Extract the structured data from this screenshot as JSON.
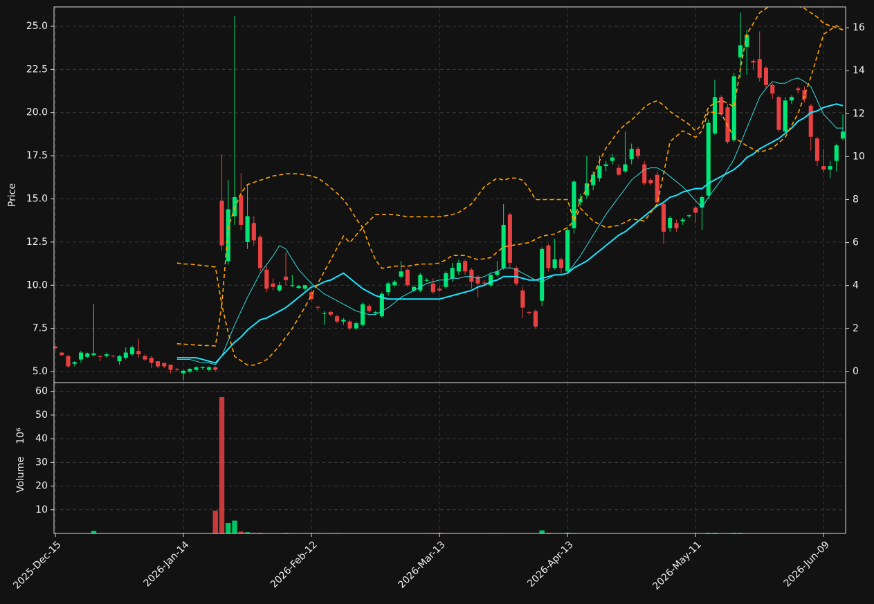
{
  "chart_data": {
    "type": "candlestick",
    "ylabel": "Price",
    "volume_ylabel": "Volume",
    "volume_unit": "10⁶",
    "grid": true,
    "up_color": "#00e676",
    "down_color": "#e84142",
    "categories": [
      "2025-Dec-15",
      null,
      null,
      null,
      null,
      null,
      null,
      null,
      null,
      null,
      null,
      null,
      null,
      null,
      null,
      null,
      null,
      null,
      null,
      null,
      "2026-Jan-14",
      null,
      null,
      null,
      null,
      null,
      null,
      null,
      null,
      null,
      null,
      null,
      null,
      null,
      null,
      null,
      null,
      null,
      null,
      null,
      "2026-Feb-12",
      null,
      null,
      null,
      null,
      null,
      null,
      null,
      null,
      null,
      null,
      null,
      null,
      null,
      null,
      null,
      null,
      null,
      null,
      null,
      "2026-Mar-13",
      null,
      null,
      null,
      null,
      null,
      null,
      null,
      null,
      null,
      null,
      null,
      null,
      null,
      null,
      null,
      null,
      null,
      null,
      null,
      "2026-Apr-13",
      null,
      null,
      null,
      null,
      null,
      null,
      null,
      null,
      null,
      null,
      null,
      null,
      null,
      null,
      null,
      null,
      null,
      null,
      null,
      "2026-May-11",
      null,
      null,
      null,
      null,
      null,
      null,
      null,
      null,
      null,
      null,
      null,
      null,
      null,
      null,
      null,
      null,
      null,
      null,
      null,
      "2026-Jun-09",
      null,
      null,
      null
    ],
    "open": [
      6.45,
      6.1,
      5.9,
      5.45,
      5.7,
      5.85,
      5.95,
      5.9,
      5.9,
      5.92,
      5.6,
      5.8,
      6.0,
      6.2,
      5.9,
      5.8,
      5.6,
      5.5,
      5.4,
      5.15,
      4.9,
      5.0,
      5.1,
      5.2,
      5.1,
      5.25,
      14.9,
      11.4,
      14.0,
      15.2,
      12.5,
      13.6,
      12.8,
      10.9,
      10.1,
      9.7,
      10.5,
      10.0,
      9.85,
      9.8,
      9.6,
      8.75,
      8.35,
      8.45,
      8.2,
      7.9,
      7.9,
      7.5,
      7.7,
      8.8,
      8.4,
      8.2,
      9.6,
      10.0,
      10.5,
      10.9,
      9.7,
      9.7,
      10.3,
      10.1,
      9.8,
      9.9,
      10.4,
      10.8,
      11.4,
      10.9,
      10.5,
      10.15,
      10.0,
      10.6,
      11.0,
      14.1,
      11.0,
      9.7,
      8.45,
      8.5,
      9.1,
      12.3,
      11.0,
      11.5,
      10.8,
      13.3,
      14.8,
      15.2,
      15.8,
      16.2,
      16.9,
      17.2,
      16.8,
      16.6,
      17.3,
      17.9,
      17.0,
      16.1,
      16.4,
      14.7,
      13.3,
      13.6,
      13.7,
      14.0,
      14.5,
      14.5,
      15.2,
      18.8,
      20.9,
      20.3,
      18.4,
      23.2,
      23.8,
      23.0,
      23.1,
      22.6,
      21.6,
      20.9,
      18.9,
      20.7,
      21.4,
      21.3,
      20.4,
      18.5,
      16.9,
      16.7,
      17.2,
      18.5
    ],
    "high": [
      6.5,
      6.15,
      5.95,
      5.6,
      6.2,
      6.1,
      8.9,
      5.95,
      6.1,
      5.95,
      5.95,
      6.4,
      6.5,
      6.9,
      6.0,
      5.9,
      5.6,
      5.5,
      5.4,
      5.2,
      5.1,
      5.2,
      5.3,
      5.3,
      5.3,
      5.3,
      17.6,
      16.1,
      25.6,
      16.5,
      15.8,
      14.0,
      12.9,
      11.1,
      10.4,
      10.2,
      11.9,
      10.6,
      10.0,
      10.0,
      9.7,
      8.8,
      8.5,
      8.5,
      8.3,
      8.1,
      8.0,
      7.9,
      9.0,
      8.9,
      8.5,
      9.6,
      10.2,
      10.3,
      11.4,
      11.0,
      10.0,
      10.7,
      10.4,
      10.4,
      10.0,
      10.8,
      11.3,
      11.5,
      11.5,
      11.0,
      10.6,
      10.3,
      10.7,
      11.4,
      14.7,
      14.2,
      11.1,
      9.9,
      8.5,
      8.6,
      12.2,
      12.4,
      12.7,
      11.6,
      13.3,
      16.1,
      15.3,
      17.5,
      16.6,
      17.5,
      17.2,
      17.6,
      17.0,
      18.9,
      18.2,
      18.0,
      17.2,
      16.2,
      16.6,
      14.8,
      14.0,
      13.8,
      13.9,
      14.1,
      14.6,
      15.2,
      19.6,
      21.9,
      21.0,
      20.5,
      22.3,
      25.8,
      24.8,
      23.1,
      24.7,
      22.7,
      21.7,
      21.0,
      20.9,
      21.0,
      21.5,
      21.5,
      20.5,
      18.6,
      17.9,
      17.2,
      18.2,
      19.9
    ],
    "low": [
      6.3,
      5.9,
      5.2,
      5.3,
      5.5,
      5.8,
      5.9,
      5.6,
      5.8,
      5.8,
      5.4,
      5.7,
      5.9,
      5.8,
      5.6,
      5.2,
      5.2,
      5.2,
      4.9,
      5.0,
      4.5,
      4.9,
      5.0,
      5.1,
      5.0,
      5.0,
      12.0,
      11.2,
      13.5,
      13.2,
      12.1,
      12.3,
      10.8,
      9.6,
      9.7,
      9.6,
      10.0,
      9.9,
      9.8,
      9.7,
      9.1,
      8.5,
      7.7,
      8.2,
      7.8,
      7.7,
      7.4,
      7.4,
      7.6,
      8.4,
      8.3,
      8.1,
      9.4,
      9.9,
      10.4,
      9.9,
      9.6,
      9.6,
      10.2,
      9.5,
      9.6,
      9.8,
      10.2,
      10.6,
      10.6,
      9.8,
      9.3,
      10.0,
      9.9,
      10.5,
      10.9,
      11.0,
      10.0,
      8.1,
      8.3,
      7.5,
      8.8,
      10.8,
      10.9,
      10.6,
      10.7,
      13.0,
      14.6,
      15.0,
      15.5,
      16.0,
      16.6,
      17.0,
      16.3,
      16.5,
      17.0,
      17.3,
      15.8,
      15.8,
      14.6,
      12.4,
      13.1,
      13.1,
      13.5,
      13.9,
      13.6,
      13.2,
      15.0,
      18.7,
      19.8,
      18.2,
      18.3,
      22.0,
      22.2,
      22.5,
      21.8,
      21.4,
      20.8,
      18.9,
      18.8,
      20.5,
      21.1,
      20.6,
      17.8,
      16.9,
      16.5,
      16.2,
      16.6,
      18.4
    ],
    "close": [
      6.35,
      5.95,
      5.3,
      5.55,
      6.1,
      6.05,
      6.05,
      5.85,
      6.0,
      5.88,
      5.9,
      6.1,
      6.4,
      6.0,
      5.7,
      5.5,
      5.3,
      5.3,
      5.1,
      5.1,
      5.05,
      5.15,
      5.25,
      5.25,
      5.25,
      5.1,
      12.3,
      14.4,
      15.1,
      13.5,
      14.0,
      12.6,
      11.0,
      9.8,
      9.9,
      10.0,
      10.3,
      10.0,
      9.95,
      10.0,
      9.2,
      8.7,
      8.4,
      8.3,
      7.9,
      8.0,
      7.5,
      7.8,
      8.9,
      8.5,
      8.45,
      9.5,
      10.1,
      10.2,
      10.8,
      10.0,
      9.9,
      10.6,
      10.3,
      9.6,
      9.7,
      10.7,
      11.0,
      11.3,
      10.8,
      10.2,
      10.1,
      10.1,
      10.6,
      10.8,
      13.5,
      11.3,
      10.1,
      8.7,
      8.4,
      7.6,
      12.1,
      11.0,
      11.5,
      11.0,
      13.2,
      16.0,
      15.0,
      15.9,
      16.4,
      16.9,
      17.0,
      17.4,
      16.4,
      17.0,
      17.9,
      17.5,
      15.9,
      15.9,
      14.8,
      13.1,
      13.9,
      13.3,
      13.8,
      14.05,
      14.2,
      15.1,
      19.4,
      20.9,
      19.9,
      18.3,
      22.1,
      23.9,
      24.5,
      22.9,
      22.0,
      21.6,
      21.1,
      19.0,
      20.7,
      20.9,
      21.3,
      20.8,
      18.6,
      17.2,
      16.7,
      16.9,
      18.1,
      18.9
    ],
    "volume": [
      0.1,
      0.1,
      0.1,
      0.1,
      0.1,
      0.1,
      1.1,
      0.1,
      0.1,
      0.1,
      0.1,
      0.1,
      0.1,
      0.1,
      0.1,
      0.1,
      0.1,
      0.1,
      0.1,
      0.1,
      0.1,
      0.1,
      0.1,
      0.1,
      0.1,
      9.6,
      57.6,
      4.4,
      5.4,
      0.8,
      0.5,
      0.3,
      0.3,
      0.1,
      0.1,
      0.1,
      0.3,
      0.1,
      0.1,
      0.1,
      0.1,
      0.2,
      0.1,
      0.1,
      0.2,
      0.1,
      0.1,
      0.1,
      0.1,
      0.1,
      0.1,
      0.1,
      0.1,
      0.1,
      0.1,
      0.1,
      0.1,
      0.1,
      0.1,
      0.2,
      0.3,
      0.1,
      0.1,
      0.1,
      0.1,
      0.1,
      0.1,
      0.1,
      0.1,
      0.2,
      0.1,
      0.1,
      0.1,
      0.1,
      0.1,
      0.1,
      1.3,
      0.3,
      0.1,
      0.1,
      0.3,
      0.2,
      0.1,
      0.1,
      0.1,
      0.1,
      0.1,
      0.1,
      0.1,
      0.1,
      0.1,
      0.1,
      0.1,
      0.1,
      0.1,
      0.1,
      0.1,
      0.1,
      0.1,
      0.1,
      0.1,
      0.1,
      0.3,
      0.3,
      0.1,
      0.1,
      0.3,
      0.3,
      0.1,
      0.1,
      0.1,
      0.1,
      0.1,
      0.1,
      0.1,
      0.1,
      0.1,
      0.1,
      0.1,
      0.1,
      0.1,
      0.1,
      0.1,
      0.1
    ],
    "overlays": [
      {
        "color": "#1ee5ff",
        "width": 2,
        "values": [
          null,
          null,
          null,
          null,
          null,
          null,
          null,
          null,
          null,
          null,
          null,
          null,
          null,
          null,
          null,
          null,
          null,
          null,
          null,
          5.8,
          5.8,
          5.8,
          5.8,
          5.7,
          5.6,
          5.5,
          5.9,
          6.3,
          6.7,
          7.0,
          7.4,
          7.7,
          8.0,
          8.1,
          8.3,
          8.5,
          8.7,
          9.0,
          9.3,
          9.6,
          9.9,
          10.0,
          10.2,
          10.3,
          10.5,
          10.7,
          10.4,
          10.1,
          9.8,
          9.6,
          9.4,
          9.3,
          9.2,
          9.2,
          9.2,
          9.2,
          9.2,
          9.2,
          9.2,
          9.2,
          9.2,
          9.3,
          9.4,
          9.5,
          9.6,
          9.7,
          9.9,
          10.0,
          10.2,
          10.3,
          10.5,
          10.5,
          10.5,
          10.4,
          10.3,
          10.3,
          10.4,
          10.5,
          10.6,
          10.6,
          10.7,
          11.0,
          11.2,
          11.4,
          11.7,
          12.0,
          12.3,
          12.6,
          12.9,
          13.1,
          13.4,
          13.7,
          14.0,
          14.3,
          14.6,
          14.8,
          15.1,
          15.2,
          15.4,
          15.5,
          15.6,
          15.6,
          15.9,
          16.1,
          16.3,
          16.5,
          16.7,
          17.0,
          17.4,
          17.6,
          17.9,
          18.1,
          18.3,
          18.5,
          18.8,
          19.1,
          19.5,
          19.7,
          20.0,
          20.1,
          20.3,
          20.4,
          20.5,
          20.4
        ]
      },
      {
        "color": "#33dddd",
        "width": 1,
        "values": [
          null,
          null,
          null,
          null,
          null,
          null,
          null,
          null,
          null,
          null,
          null,
          null,
          null,
          null,
          null,
          null,
          null,
          null,
          null,
          5.7,
          5.7,
          5.7,
          5.6,
          5.5,
          5.5,
          5.4,
          5.9,
          6.8,
          7.7,
          8.5,
          9.3,
          10.0,
          10.7,
          11.2,
          11.7,
          12.3,
          12.1,
          11.5,
          10.9,
          10.5,
          10.1,
          9.8,
          9.5,
          9.3,
          9.1,
          8.9,
          8.7,
          8.5,
          8.4,
          8.3,
          8.3,
          8.5,
          8.7,
          9.0,
          9.3,
          9.5,
          9.7,
          9.9,
          10.1,
          10.2,
          10.3,
          10.3,
          10.4,
          10.4,
          10.5,
          10.5,
          10.4,
          10.5,
          10.7,
          10.8,
          11.0,
          11.0,
          10.9,
          10.7,
          10.5,
          10.3,
          10.2,
          10.4,
          10.6,
          10.6,
          10.7,
          11.2,
          11.7,
          12.3,
          12.9,
          13.5,
          14.1,
          14.6,
          15.1,
          15.6,
          16.1,
          16.4,
          16.7,
          16.8,
          16.8,
          16.6,
          16.3,
          16.0,
          15.7,
          15.3,
          14.9,
          14.5,
          15.1,
          15.6,
          16.1,
          16.7,
          17.3,
          18.2,
          19.1,
          20.0,
          20.9,
          21.4,
          21.8,
          21.7,
          21.7,
          21.9,
          22.0,
          21.8,
          21.5,
          20.7,
          19.9,
          19.5,
          19.1,
          19.1
        ]
      },
      {
        "color": "#ffa500",
        "width": 1.6,
        "dash": true,
        "axis": "y2",
        "values": [
          null,
          null,
          null,
          null,
          null,
          null,
          null,
          null,
          null,
          null,
          null,
          null,
          null,
          null,
          null,
          null,
          null,
          null,
          null,
          5.05,
          5.0,
          5.0,
          4.96,
          4.93,
          4.9,
          4.86,
          3.1,
          6.7,
          7.6,
          8.3,
          8.7,
          8.8,
          8.9,
          9.0,
          9.1,
          9.15,
          9.2,
          9.2,
          9.2,
          9.15,
          9.1,
          9.0,
          8.8,
          8.55,
          8.3,
          8.0,
          7.6,
          7.1,
          6.7,
          7.0,
          7.3,
          7.3,
          7.3,
          7.3,
          7.25,
          7.2,
          7.2,
          7.2,
          7.2,
          7.2,
          7.2,
          7.25,
          7.3,
          7.4,
          7.6,
          7.8,
          8.2,
          8.6,
          8.8,
          9.0,
          8.9,
          9.0,
          9.0,
          8.9,
          8.5,
          8.0,
          8.0,
          8.0,
          8.0,
          8.0,
          8.0,
          7.0,
          8.0,
          8.5,
          9.1,
          9.8,
          10.4,
          10.8,
          11.2,
          11.5,
          11.7,
          12.0,
          12.3,
          12.5,
          12.6,
          12.4,
          12.1,
          11.9,
          11.7,
          11.5,
          11.2,
          11.5,
          12.3,
          12.5,
          12.6,
          12.5,
          12.3,
          14.1,
          15.7,
          16.2,
          16.7,
          16.9,
          17.1,
          17.1,
          17.1,
          17.0,
          17.0,
          16.9,
          16.7,
          16.5,
          16.2,
          16.1,
          16.0,
          15.9
        ]
      },
      {
        "color": "#ffa500",
        "width": 1.6,
        "dash": true,
        "axis": "y2",
        "values": [
          null,
          null,
          null,
          null,
          null,
          null,
          null,
          null,
          null,
          null,
          null,
          null,
          null,
          null,
          null,
          null,
          null,
          null,
          null,
          1.29,
          1.27,
          1.25,
          1.23,
          1.21,
          1.2,
          1.19,
          3.1,
          1.8,
          0.7,
          0.5,
          0.3,
          0.29,
          0.4,
          0.55,
          0.85,
          1.2,
          1.6,
          2.0,
          2.5,
          3.0,
          3.55,
          4.1,
          4.65,
          5.2,
          5.75,
          6.3,
          6.0,
          6.35,
          6.7,
          5.9,
          5.2,
          4.8,
          4.85,
          4.9,
          4.9,
          4.9,
          4.95,
          5.0,
          5.0,
          5.0,
          5.05,
          5.2,
          5.4,
          5.4,
          5.4,
          5.3,
          5.2,
          5.25,
          5.3,
          5.55,
          5.8,
          5.85,
          5.9,
          5.95,
          6.0,
          6.15,
          6.3,
          6.35,
          6.4,
          6.55,
          6.7,
          7.0,
          7.6,
          7.3,
          7.0,
          6.85,
          6.7,
          6.75,
          6.8,
          6.95,
          7.1,
          7.05,
          7.0,
          7.4,
          7.8,
          9.2,
          10.7,
          10.95,
          11.2,
          11.05,
          10.9,
          11.2,
          12.1,
          12.05,
          12.0,
          11.45,
          10.9,
          10.7,
          10.5,
          10.35,
          10.2,
          10.3,
          10.4,
          10.65,
          10.9,
          11.45,
          12.0,
          12.85,
          13.7,
          14.7,
          15.7,
          15.9,
          16.1,
          15.9
        ]
      }
    ],
    "ylim": [
      4.36,
      26.12
    ],
    "yticks": [
      {
        "value": 5,
        "label": "5.0"
      },
      7.5,
      {
        "value": 10,
        "label": "10.0"
      },
      12.5,
      {
        "value": 15,
        "label": "15.0"
      },
      17.5,
      {
        "value": 20,
        "label": "20.0"
      },
      22.5,
      {
        "value": 25,
        "label": "25.0"
      }
    ],
    "y2lim": [
      -0.52,
      16.97
    ],
    "y2ticks": [
      0,
      2,
      4,
      6,
      8,
      10,
      12,
      14,
      16
    ],
    "volume_ylim": [
      0,
      63.7
    ],
    "volume_yticks": [
      10,
      20,
      30,
      40,
      50,
      60
    ]
  }
}
